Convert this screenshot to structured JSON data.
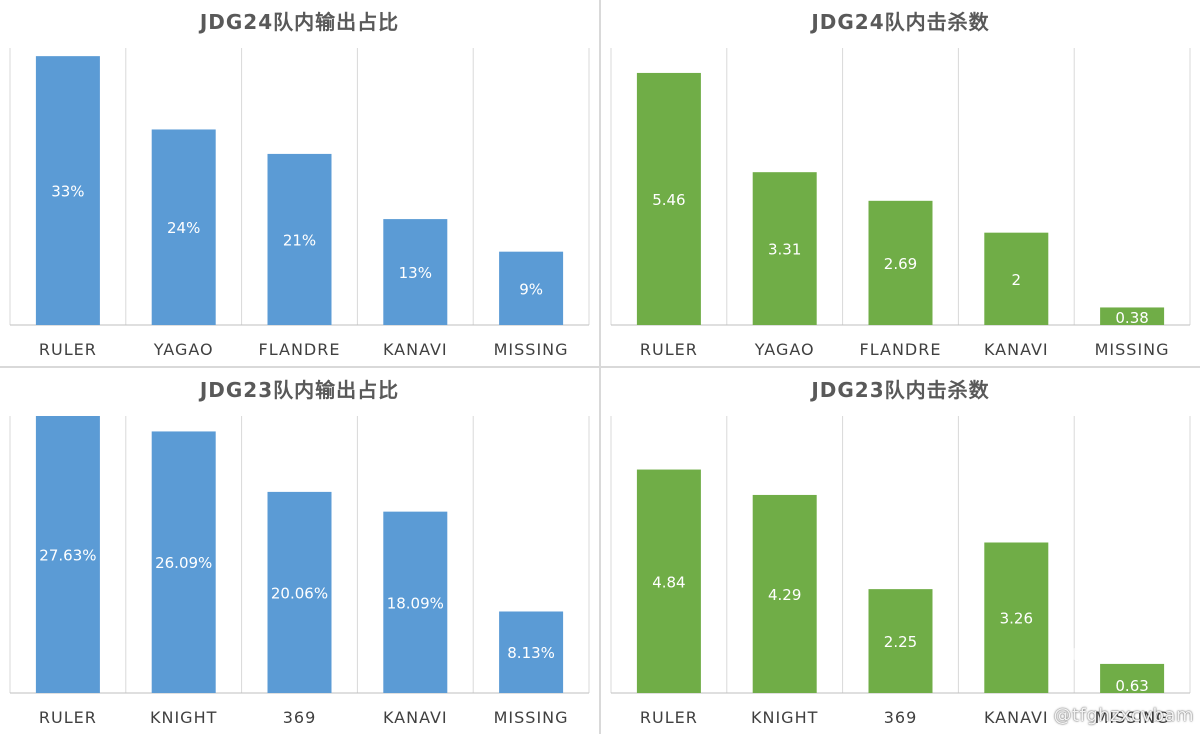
{
  "colors": {
    "blue": "#5B9BD5",
    "green": "#70AD47",
    "grid": "#d9d9d9",
    "axis": "#bfbfbf",
    "title": "#595959",
    "label": "#404040",
    "data_label": "#ffffff"
  },
  "watermark": "@tfghzxcvbam",
  "chart_data": [
    {
      "type": "bar",
      "title": "JDG24队内输出占比",
      "categories": [
        "RULER",
        "YAGAO",
        "FLANDRE",
        "KANAVI",
        "MISSING"
      ],
      "values": [
        33,
        24,
        21,
        13,
        9
      ],
      "data_labels": [
        "33%",
        "24%",
        "21%",
        "13%",
        "9%"
      ],
      "color": "#5B9BD5",
      "ylim": [
        0,
        34
      ],
      "xlabel": "",
      "ylabel": "",
      "grid": "vertical category separators",
      "legend": "none"
    },
    {
      "type": "bar",
      "title": "JDG24队内击杀数",
      "categories": [
        "RULER",
        "YAGAO",
        "FLANDRE",
        "KANAVI",
        "MISSING"
      ],
      "values": [
        5.46,
        3.31,
        2.69,
        2,
        0.38
      ],
      "data_labels": [
        "5.46",
        "3.31",
        "2.69",
        "2",
        "0.38"
      ],
      "color": "#70AD47",
      "ylim": [
        0,
        6
      ],
      "xlabel": "",
      "ylabel": "",
      "grid": "vertical category separators",
      "legend": "none"
    },
    {
      "type": "bar",
      "title": "JDG23队内输出占比",
      "categories": [
        "RULER",
        "KNIGHT",
        "369",
        "KANAVI",
        "MISSING"
      ],
      "values": [
        27.63,
        26.09,
        20.06,
        18.09,
        8.13
      ],
      "data_labels": [
        "27.63%",
        "26.09%",
        "20.06%",
        "18.09%",
        "8.13%"
      ],
      "color": "#5B9BD5",
      "ylim": [
        0,
        27.63
      ],
      "xlabel": "",
      "ylabel": "",
      "grid": "vertical category separators",
      "legend": "none"
    },
    {
      "type": "bar",
      "title": "JDG23队内击杀数",
      "categories": [
        "RULER",
        "KNIGHT",
        "369",
        "KANAVI",
        "MISSING"
      ],
      "values": [
        4.84,
        4.29,
        2.25,
        3.26,
        0.63
      ],
      "data_labels": [
        "4.84",
        "4.29",
        "2.25",
        "3.26",
        "0.63"
      ],
      "color": "#70AD47",
      "ylim": [
        0,
        6
      ],
      "xlabel": "",
      "ylabel": "",
      "grid": "vertical category separators",
      "legend": "none"
    }
  ]
}
